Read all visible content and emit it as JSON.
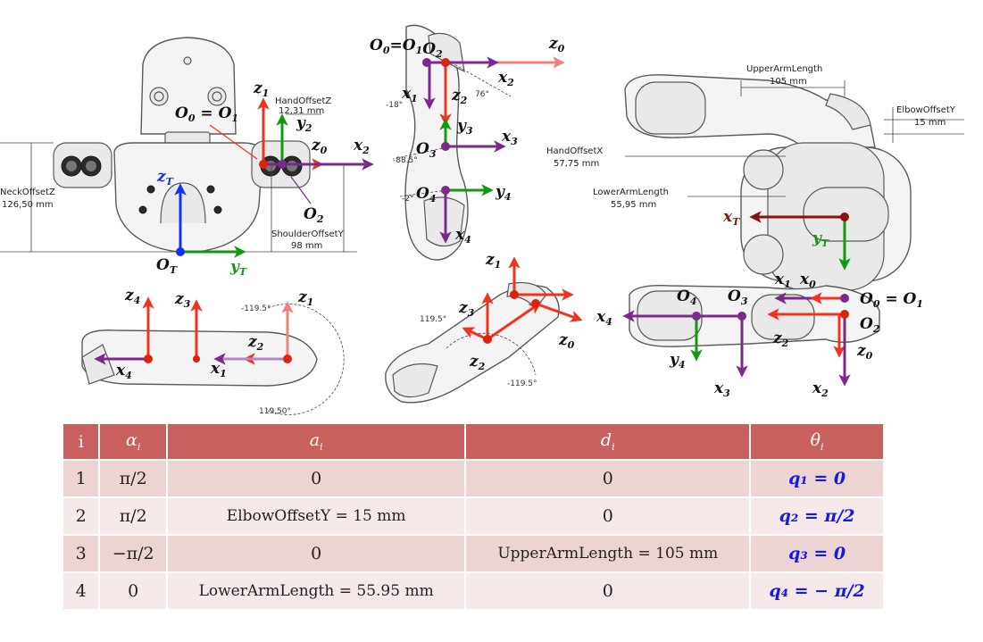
{
  "front_view": {
    "dim_hand_offset_z": "HandOffsetZ",
    "dim_hand_offset_z_val": "12,31 mm",
    "dim_neck_offset_z": "NeckOffsetZ",
    "dim_neck_offset_z_val": "126,50 mm",
    "dim_shoulder_offset_y": "ShoulderOffsetY",
    "dim_shoulder_offset_y_val": "98 mm",
    "origin_o0_o1": "O",
    "origin_o2": "O",
    "origin_ot": "O"
  },
  "side_view": {
    "origin_top": "O",
    "angle_76": "76°",
    "angle_m18": "-18°",
    "angle_m88": "-88.5°",
    "angle_m2": "-2°"
  },
  "top_view": {
    "dim_upper_arm": "UpperArmLength",
    "dim_upper_arm_val": "105 mm",
    "dim_elbow_offset_y": "ElbowOffsetY",
    "dim_elbow_offset_y_val": "15 mm",
    "dim_hand_offset_x": "HandOffsetX",
    "dim_hand_offset_x_val": "57,75 mm",
    "dim_lower_arm": "LowerArmLength",
    "dim_lower_arm_val": "55,95 mm"
  },
  "bottom_left_view": {
    "angle_top": "-119.5°",
    "angle_bottom": "119,50°"
  },
  "bottom_mid_view": {
    "angle_left": "119.5°",
    "angle_right": "-119.5°"
  },
  "table": {
    "headers": [
      "i",
      "α",
      "a",
      "d",
      "θ"
    ],
    "header_sub": "i",
    "rows": [
      {
        "i": "1",
        "alpha": "π/2",
        "a": "0",
        "d": "0",
        "theta": "q₁ = 0"
      },
      {
        "i": "2",
        "alpha": "π/2",
        "a": "ElbowOffsetY = 15 mm",
        "d": "0",
        "theta": "q₂ = π/2"
      },
      {
        "i": "3",
        "alpha": "−π/2",
        "a": "0",
        "d": "UpperArmLength = 105 mm",
        "theta": "q₃ = 0"
      },
      {
        "i": "4",
        "alpha": "0",
        "a": "LowerArmLength = 55.95 mm",
        "d": "0",
        "theta": "q₄ = − π/2"
      }
    ]
  },
  "colors": {
    "z_axis": "#ee3322",
    "y_axis": "#119911",
    "x_axis": "#7a2a8a",
    "origin_dot": "#dd2211",
    "tool_x": "#8b1111",
    "tool_z": "#1133ee",
    "z0_light": "#f08080"
  }
}
